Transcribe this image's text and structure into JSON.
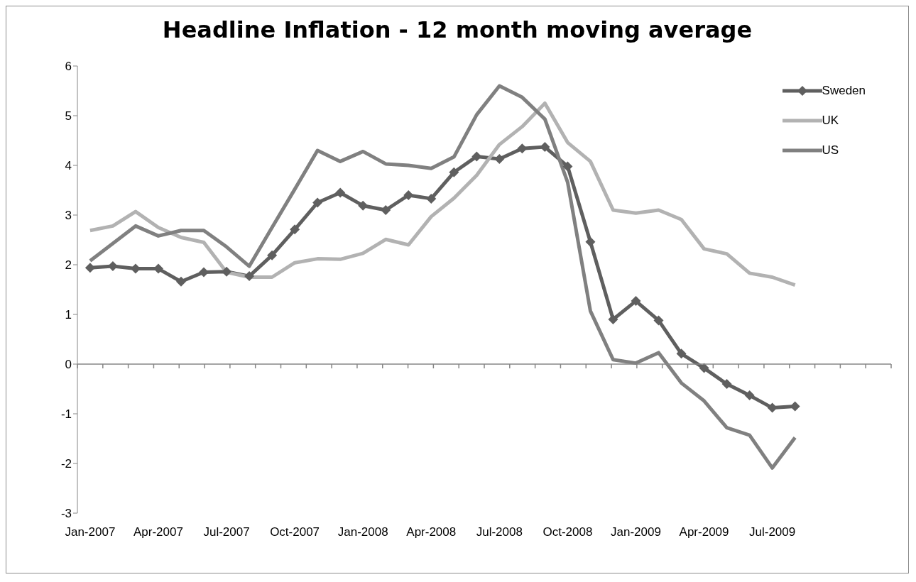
{
  "chart_data": {
    "type": "line",
    "title": "Headline Inflation - 12 month moving average",
    "categories": [
      "Jan-2007",
      null,
      null,
      "Apr-2007",
      null,
      null,
      "Jul-2007",
      null,
      null,
      "Oct-2007",
      null,
      null,
      "Jan-2008",
      null,
      null,
      "Apr-2008",
      null,
      null,
      "Jul-2008",
      null,
      null,
      "Oct-2008",
      null,
      null,
      "Jan-2009",
      null,
      null,
      "Apr-2009",
      null,
      null,
      "Jul-2009",
      null
    ],
    "series": [
      {
        "name": "Sweden",
        "color": "#5f5f5f",
        "marker": "diamond",
        "values": [
          1.94,
          1.97,
          1.92,
          1.92,
          1.66,
          1.85,
          1.86,
          1.77,
          2.19,
          2.71,
          3.25,
          3.45,
          3.19,
          3.1,
          3.4,
          3.33,
          3.86,
          4.18,
          4.13,
          4.34,
          4.37,
          3.98,
          2.46,
          0.9,
          1.27,
          0.88,
          0.21,
          -0.08,
          -0.4,
          -0.63,
          -0.88,
          -0.85
        ]
      },
      {
        "name": "UK",
        "color": "#b2b2b2",
        "marker": "none",
        "values": [
          2.69,
          2.78,
          3.07,
          2.75,
          2.55,
          2.45,
          1.85,
          1.75,
          1.75,
          2.04,
          2.12,
          2.11,
          2.23,
          2.51,
          2.4,
          2.97,
          3.34,
          3.8,
          4.42,
          4.78,
          5.25,
          4.46,
          4.08,
          3.1,
          3.04,
          3.1,
          2.91,
          2.32,
          2.22,
          1.83,
          1.75,
          1.59
        ]
      },
      {
        "name": "US",
        "color": "#808080",
        "marker": "none",
        "values": [
          2.08,
          2.43,
          2.78,
          2.58,
          2.69,
          2.69,
          2.36,
          1.97,
          2.75,
          3.52,
          4.3,
          4.08,
          4.28,
          4.03,
          4.0,
          3.94,
          4.17,
          5.02,
          5.6,
          5.37,
          4.93,
          3.66,
          1.07,
          0.09,
          0.02,
          0.23,
          -0.38,
          -0.74,
          -1.28,
          -1.43,
          -2.09,
          -1.48
        ]
      }
    ],
    "ylim": [
      -3,
      6
    ],
    "yticks": [
      -3,
      -2,
      -1,
      0,
      1,
      2,
      3,
      4,
      5,
      6
    ],
    "legend": "top right"
  }
}
